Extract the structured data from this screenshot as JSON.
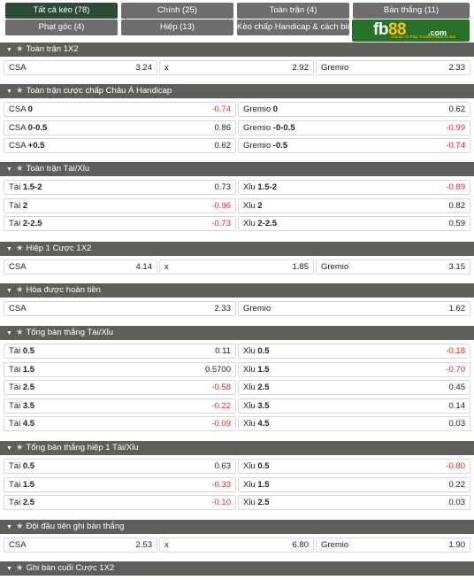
{
  "tabs": [
    {
      "label": "Tất cả kèo (78)",
      "active": true
    },
    {
      "label": "Chính (25)"
    },
    {
      "label": "Toàn trận (4)"
    },
    {
      "label": "Bàn thắng (11)"
    },
    {
      "label": "Phạt góc (4)"
    },
    {
      "label": "Hiệp (13)"
    },
    {
      "label": "Kèo chấp Handicap & cách biệt (3)"
    }
  ],
  "logo": {
    "brand": "fb",
    "brand_num": "88",
    "domain": ".com",
    "tagline": "Games To Play  Trusted Place To Bet"
  },
  "sections": [
    {
      "title": "Toàn trận 1X2",
      "rows": [
        [
          {
            "name": "CSA",
            "odds": "3.24"
          },
          {
            "name": "x",
            "odds": "2.92"
          },
          {
            "name": "Gremio",
            "odds": "2.33"
          }
        ]
      ]
    },
    {
      "title": "Toàn trận cược chấp Châu Á Handicap",
      "rows": [
        [
          {
            "name": "CSA",
            "line": "0",
            "odds": "-0.74"
          },
          {
            "name": "Gremio",
            "line": "0",
            "odds": "0.62"
          }
        ],
        [
          {
            "name": "CSA",
            "line": "0-0.5",
            "odds": "0.86"
          },
          {
            "name": "Gremio",
            "line": "-0-0.5",
            "odds": "-0.99"
          }
        ],
        [
          {
            "name": "CSA",
            "line": "+0.5",
            "odds": "0.62"
          },
          {
            "name": "Gremio",
            "line": "-0.5",
            "odds": "-0.74"
          }
        ]
      ]
    },
    {
      "title": "Toàn trận Tài/Xỉu",
      "rows": [
        [
          {
            "name": "Tài",
            "line": "1.5-2",
            "odds": "0.73"
          },
          {
            "name": "Xỉu",
            "line": "1.5-2",
            "odds": "-0.89"
          }
        ],
        [
          {
            "name": "Tài",
            "line": "2",
            "odds": "-0.96"
          },
          {
            "name": "Xỉu",
            "line": "2",
            "odds": "0.82"
          }
        ],
        [
          {
            "name": "Tài",
            "line": "2-2.5",
            "odds": "-0.73"
          },
          {
            "name": "Xỉu",
            "line": "2-2.5",
            "odds": "0.59"
          }
        ]
      ]
    },
    {
      "title": "Hiệp 1 Cược 1X2",
      "rows": [
        [
          {
            "name": "CSA",
            "odds": "4.14"
          },
          {
            "name": "x",
            "odds": "1.85"
          },
          {
            "name": "Gremio",
            "odds": "3.15"
          }
        ]
      ]
    },
    {
      "title": "Hòa được hoàn tiền",
      "rows": [
        [
          {
            "name": "CSA",
            "odds": "2.33"
          },
          {
            "name": "Gremio",
            "odds": "1.62"
          }
        ]
      ]
    },
    {
      "title": "Tổng bàn thắng Tài/Xỉu",
      "rows": [
        [
          {
            "name": "Tài",
            "line": "0.5",
            "odds": "0.11"
          },
          {
            "name": "Xỉu",
            "line": "0.5",
            "odds": "-0.18"
          }
        ],
        [
          {
            "name": "Tài",
            "line": "1.5",
            "odds": "0.5700"
          },
          {
            "name": "Xỉu",
            "line": "1.5",
            "odds": "-0.70"
          }
        ],
        [
          {
            "name": "Tài",
            "line": "2.5",
            "odds": "-0.58"
          },
          {
            "name": "Xỉu",
            "line": "2.5",
            "odds": "0.45"
          }
        ],
        [
          {
            "name": "Tài",
            "line": "3.5",
            "odds": "-0.22"
          },
          {
            "name": "Xỉu",
            "line": "3.5",
            "odds": "0.14"
          }
        ],
        [
          {
            "name": "Tài",
            "line": "4.5",
            "odds": "-0.09"
          },
          {
            "name": "Xỉu",
            "line": "4.5",
            "odds": "0.03"
          }
        ]
      ]
    },
    {
      "title": "Tổng bàn thắng hiệp 1 Tài/Xỉu",
      "rows": [
        [
          {
            "name": "Tài",
            "line": "0.5",
            "odds": "0.63"
          },
          {
            "name": "Xỉu",
            "line": "0.5",
            "odds": "-0.80"
          }
        ],
        [
          {
            "name": "Tài",
            "line": "1.5",
            "odds": "-0.33"
          },
          {
            "name": "Xỉu",
            "line": "1.5",
            "odds": "0.22"
          }
        ],
        [
          {
            "name": "Tài",
            "line": "2.5",
            "odds": "-0.10"
          },
          {
            "name": "Xỉu",
            "line": "2.5",
            "odds": "0.03"
          }
        ]
      ]
    },
    {
      "title": "Đội đầu tiên ghi bàn thắng",
      "rows": [
        [
          {
            "name": "CSA",
            "odds": "2.53"
          },
          {
            "name": "x",
            "odds": "6.80"
          },
          {
            "name": "Gremio",
            "odds": "1.90"
          }
        ]
      ]
    },
    {
      "title": "Ghi bàn cuối Cược 1X2",
      "rows": []
    }
  ],
  "colors": {
    "header": "#5d5f5b",
    "active_tab": "#2d4a37",
    "tab": "#6d6d6d",
    "negative": "#e02a2a"
  },
  "icons": {
    "collapse": "caret-down-icon",
    "favorite": "star-icon"
  }
}
